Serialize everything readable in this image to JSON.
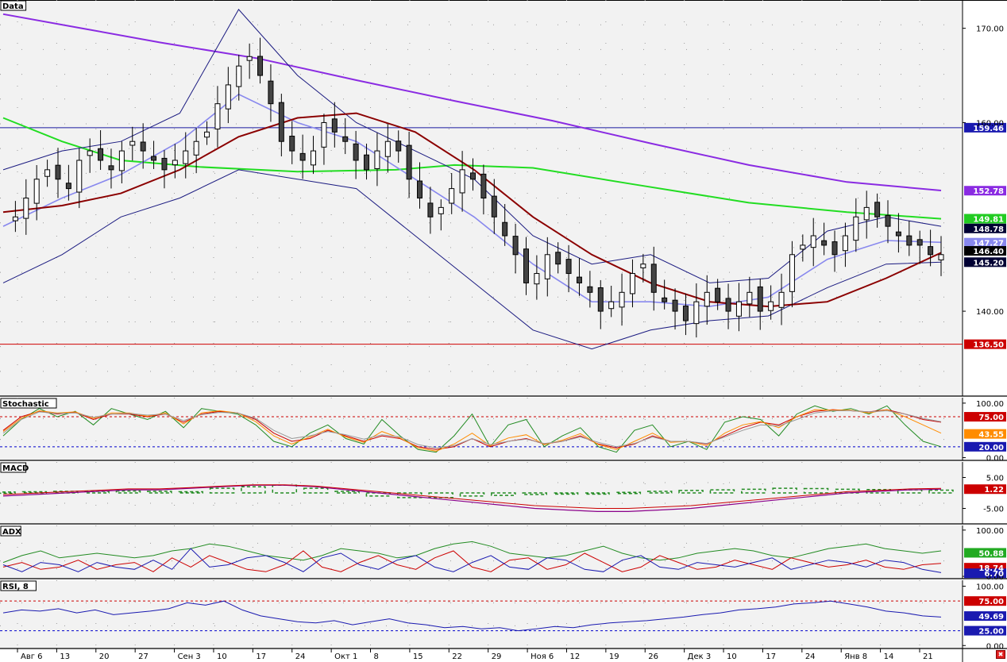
{
  "window": {
    "close_icon": "close-icon"
  },
  "x_axis": {
    "labels": [
      "Авг 6",
      "13",
      "20",
      "27",
      "Сен 3",
      "10",
      "17",
      "24",
      "Окт 1",
      "8",
      "15",
      "22",
      "29",
      "Ноя 6",
      "12",
      "19",
      "26",
      "Дек 3",
      "10",
      "17",
      "24",
      "Янв 8",
      "14",
      "21"
    ]
  },
  "chart_data": [
    {
      "title": "Data",
      "type": "candlestick",
      "ylim": [
        131,
        173
      ],
      "yticks": [
        "170.00",
        "160.00",
        "140.00"
      ],
      "hlines": [
        {
          "value": 159.46,
          "color": "#1a1aa0"
        },
        {
          "value": 136.5,
          "color": "#d00000"
        }
      ],
      "badges": [
        {
          "text": "159.46",
          "value": 159.46,
          "bg": "#1a1ab0",
          "fg": "#ffffff"
        },
        {
          "text": "152.78",
          "value": 152.78,
          "bg": "#8a2be2",
          "fg": "#ffffff"
        },
        {
          "text": "149.81",
          "value": 149.81,
          "bg": "#22cc22",
          "fg": "#ffffff"
        },
        {
          "text": "148.78",
          "value": 148.78,
          "bg": "#000033",
          "fg": "#ffffff"
        },
        {
          "text": "147.27",
          "value": 147.27,
          "bg": "#8888ee",
          "fg": "#ffffff"
        },
        {
          "text": "146.40",
          "value": 146.4,
          "bg": "#000000",
          "fg": "#ffffff"
        },
        {
          "text": "145.20",
          "value": 145.2,
          "bg": "#000033",
          "fg": "#ffffff"
        },
        {
          "text": "136.50",
          "value": 136.5,
          "bg": "#cc0000",
          "fg": "#ffffff"
        }
      ],
      "close_path": [
        149,
        150,
        152,
        154,
        155,
        154,
        153,
        156,
        157,
        156,
        155,
        157,
        158,
        157,
        156,
        155,
        156,
        157,
        158,
        159,
        162,
        164,
        166,
        167,
        165,
        162,
        158,
        157,
        156,
        157,
        160,
        159,
        158,
        156,
        155,
        157,
        158,
        157,
        154,
        152,
        150,
        151,
        153,
        155,
        154,
        152,
        150,
        148,
        146,
        143,
        144,
        146,
        145,
        144,
        143,
        142,
        140,
        141,
        142,
        144,
        145,
        142,
        141,
        140,
        139,
        141,
        142,
        141,
        140,
        141,
        142,
        140,
        141,
        142,
        146,
        147,
        148,
        147,
        146,
        148,
        150,
        151,
        150,
        149,
        148,
        147,
        147,
        146,
        146
      ],
      "ma_purple": [
        [
          0,
          171.5
        ],
        [
          40,
          170
        ],
        [
          80,
          168.5
        ],
        [
          130,
          166.8
        ],
        [
          180,
          164.5
        ],
        [
          230,
          162.3
        ],
        [
          280,
          160.2
        ],
        [
          330,
          157.8
        ],
        [
          380,
          155.5
        ],
        [
          430,
          153.7
        ],
        [
          478,
          152.8
        ]
      ],
      "ma_green": [
        [
          0,
          160.5
        ],
        [
          30,
          158
        ],
        [
          60,
          156
        ],
        [
          100,
          155.3
        ],
        [
          150,
          154.8
        ],
        [
          200,
          155
        ],
        [
          230,
          155.5
        ],
        [
          270,
          155.2
        ],
        [
          320,
          153.5
        ],
        [
          380,
          151.5
        ],
        [
          430,
          150.5
        ],
        [
          478,
          149.8
        ]
      ],
      "ma_red": [
        [
          0,
          150.5
        ],
        [
          30,
          151.2
        ],
        [
          60,
          152.5
        ],
        [
          90,
          155
        ],
        [
          120,
          158.5
        ],
        [
          150,
          160.5
        ],
        [
          180,
          161
        ],
        [
          210,
          159
        ],
        [
          240,
          155
        ],
        [
          270,
          150
        ],
        [
          300,
          146
        ],
        [
          330,
          143
        ],
        [
          360,
          141
        ],
        [
          390,
          140.5
        ],
        [
          420,
          141
        ],
        [
          450,
          143.5
        ],
        [
          478,
          146.2
        ]
      ],
      "bb_mid": [
        [
          0,
          149
        ],
        [
          30,
          152
        ],
        [
          60,
          154.5
        ],
        [
          90,
          158
        ],
        [
          120,
          163
        ],
        [
          150,
          160
        ],
        [
          180,
          158
        ],
        [
          210,
          154
        ],
        [
          240,
          150
        ],
        [
          270,
          145
        ],
        [
          300,
          141
        ],
        [
          330,
          141
        ],
        [
          360,
          140.5
        ],
        [
          390,
          141.5
        ],
        [
          420,
          145.5
        ],
        [
          450,
          147.5
        ],
        [
          478,
          147.3
        ]
      ],
      "bb_up": [
        [
          0,
          155
        ],
        [
          30,
          157
        ],
        [
          60,
          158
        ],
        [
          90,
          161
        ],
        [
          120,
          172
        ],
        [
          150,
          165
        ],
        [
          180,
          160
        ],
        [
          210,
          157
        ],
        [
          240,
          154
        ],
        [
          270,
          148
        ],
        [
          300,
          145
        ],
        [
          330,
          146
        ],
        [
          360,
          143
        ],
        [
          390,
          143.5
        ],
        [
          420,
          148.5
        ],
        [
          450,
          150
        ],
        [
          478,
          149
        ]
      ],
      "bb_low": [
        [
          0,
          143
        ],
        [
          30,
          146
        ],
        [
          60,
          150
        ],
        [
          90,
          152
        ],
        [
          120,
          155
        ],
        [
          150,
          154
        ],
        [
          180,
          153
        ],
        [
          210,
          148
        ],
        [
          240,
          143
        ],
        [
          270,
          138
        ],
        [
          300,
          136
        ],
        [
          330,
          138
        ],
        [
          360,
          139
        ],
        [
          390,
          139.5
        ],
        [
          420,
          142.5
        ],
        [
          450,
          145
        ],
        [
          478,
          145.2
        ]
      ]
    },
    {
      "title": "Stochastic",
      "type": "line",
      "ylim": [
        -5,
        110
      ],
      "yticks": [
        "100.00",
        "0.00"
      ],
      "levels": [
        {
          "value": 75,
          "color": "#cc0000"
        },
        {
          "value": 20,
          "color": "#0000cc"
        }
      ],
      "badges": [
        {
          "text": "75.00",
          "value": 75,
          "bg": "#cc0000",
          "fg": "#ffffff"
        },
        {
          "text": "43.55",
          "value": 43.55,
          "bg": "#ff8c00",
          "fg": "#ffffff"
        },
        {
          "text": "20.00",
          "value": 20,
          "bg": "#1a1ab0",
          "fg": "#ffffff"
        }
      ],
      "series": [
        {
          "color": "#228b22",
          "values": [
            40,
            70,
            90,
            75,
            85,
            60,
            90,
            80,
            70,
            85,
            55,
            90,
            85,
            80,
            60,
            30,
            20,
            45,
            60,
            35,
            25,
            70,
            40,
            15,
            10,
            40,
            80,
            20,
            60,
            70,
            20,
            40,
            55,
            20,
            10,
            50,
            60,
            20,
            30,
            15,
            65,
            75,
            70,
            40,
            80,
            95,
            85,
            90,
            80,
            95,
            60,
            30,
            20
          ]
        },
        {
          "color": "#cc0000",
          "values": [
            50,
            75,
            85,
            80,
            83,
            70,
            80,
            80,
            75,
            80,
            65,
            80,
            85,
            82,
            70,
            45,
            30,
            35,
            50,
            40,
            30,
            40,
            35,
            20,
            15,
            20,
            35,
            20,
            30,
            35,
            25,
            30,
            40,
            25,
            18,
            25,
            40,
            30,
            30,
            25,
            40,
            55,
            65,
            60,
            75,
            85,
            88,
            86,
            84,
            88,
            80,
            70,
            65
          ]
        },
        {
          "color": "#ff8c00",
          "values": [
            48,
            72,
            86,
            82,
            84,
            72,
            82,
            82,
            76,
            82,
            62,
            82,
            86,
            82,
            66,
            40,
            25,
            38,
            52,
            38,
            28,
            48,
            36,
            18,
            12,
            25,
            45,
            22,
            36,
            42,
            24,
            32,
            44,
            24,
            15,
            30,
            45,
            28,
            30,
            22,
            45,
            60,
            66,
            55,
            75,
            88,
            87,
            87,
            82,
            88,
            75,
            60,
            45
          ]
        },
        {
          "color": "#999999",
          "values": [
            45,
            70,
            84,
            81,
            82,
            74,
            80,
            81,
            78,
            80,
            68,
            79,
            83,
            82,
            72,
            50,
            35,
            40,
            48,
            42,
            34,
            42,
            38,
            24,
            18,
            22,
            35,
            24,
            30,
            34,
            26,
            30,
            38,
            28,
            20,
            26,
            38,
            30,
            30,
            26,
            38,
            50,
            60,
            58,
            70,
            82,
            86,
            86,
            84,
            86,
            80,
            72,
            66
          ]
        }
      ]
    },
    {
      "title": "MACD",
      "type": "bar+line",
      "ylim": [
        -10,
        10
      ],
      "yticks": [
        "5.00",
        "-5.00"
      ],
      "badges": [
        {
          "text": "1.22",
          "value": 1.22,
          "bg": "#cc0000",
          "fg": "#ffffff"
        }
      ],
      "line": [
        -1,
        -0.5,
        0,
        0.5,
        1,
        1,
        1.5,
        2,
        2.5,
        2.5,
        2,
        1,
        0,
        -1,
        -2,
        -3,
        -4,
        -5,
        -5.5,
        -6,
        -6,
        -5.5,
        -5,
        -4,
        -3,
        -2,
        -1,
        0,
        0.5,
        1,
        1.2
      ],
      "hist": [
        0.3,
        0.4,
        0.5,
        0.5,
        0.6,
        0.5,
        0.4,
        1.5,
        2,
        2.5,
        1.5,
        0.5,
        -1,
        -1.5,
        -1.5,
        -1,
        -0.8,
        -0.5,
        -0.3,
        -0.2,
        0.2,
        0.5,
        0.8,
        1,
        1.2,
        1.5,
        1.4,
        1.2,
        1.1,
        1.0,
        0.9
      ]
    },
    {
      "title": "ADX",
      "type": "line",
      "ylim": [
        -5,
        110
      ],
      "yticks": [
        "100.00",
        "0.00"
      ],
      "badges": [
        {
          "text": "50.88",
          "value": 50.88,
          "bg": "#22aa22",
          "fg": "#ffffff"
        },
        {
          "text": "18.74",
          "value": 18.74,
          "bg": "#cc0000",
          "fg": "#ffffff"
        },
        {
          "text": "6.70",
          "value": 6.7,
          "bg": "#1a1ab0",
          "fg": "#ffffff"
        }
      ],
      "series": [
        {
          "color": "#228b22",
          "values": [
            30,
            45,
            55,
            40,
            45,
            50,
            45,
            40,
            45,
            55,
            60,
            70,
            65,
            55,
            45,
            40,
            35,
            45,
            60,
            55,
            50,
            40,
            45,
            60,
            70,
            75,
            65,
            50,
            45,
            40,
            45,
            55,
            65,
            50,
            40,
            35,
            40,
            50,
            55,
            60,
            55,
            45,
            40,
            50,
            60,
            65,
            70,
            60,
            55,
            50,
            55
          ]
        },
        {
          "color": "#cc0000",
          "values": [
            20,
            30,
            15,
            20,
            35,
            15,
            25,
            30,
            10,
            40,
            20,
            45,
            30,
            15,
            10,
            25,
            55,
            20,
            10,
            30,
            45,
            25,
            15,
            40,
            55,
            20,
            10,
            35,
            40,
            15,
            25,
            50,
            30,
            10,
            20,
            45,
            30,
            15,
            20,
            35,
            25,
            15,
            40,
            30,
            20,
            25,
            35,
            20,
            15,
            25,
            28
          ]
        },
        {
          "color": "#1a1ab0",
          "values": [
            25,
            10,
            30,
            25,
            10,
            30,
            20,
            15,
            35,
            15,
            60,
            20,
            25,
            40,
            45,
            30,
            10,
            40,
            50,
            25,
            15,
            35,
            45,
            20,
            10,
            30,
            45,
            20,
            15,
            40,
            35,
            15,
            10,
            35,
            45,
            20,
            15,
            30,
            25,
            20,
            30,
            40,
            15,
            25,
            35,
            30,
            20,
            35,
            30,
            15,
            8
          ]
        }
      ]
    },
    {
      "title": "RSI, 8",
      "type": "line",
      "ylim": [
        -5,
        110
      ],
      "yticks": [
        "100.00",
        "0.00"
      ],
      "levels": [
        {
          "value": 75,
          "color": "#cc0000"
        },
        {
          "value": 25,
          "color": "#0000cc"
        }
      ],
      "badges": [
        {
          "text": "75.00",
          "value": 75,
          "bg": "#cc0000",
          "fg": "#ffffff"
        },
        {
          "text": "49.69",
          "value": 49.69,
          "bg": "#1a1ab0",
          "fg": "#ffffff"
        },
        {
          "text": "25.00",
          "value": 25,
          "bg": "#1a1ab0",
          "fg": "#ffffff"
        }
      ],
      "series": [
        {
          "color": "#1a1ab0",
          "values": [
            55,
            60,
            58,
            62,
            55,
            60,
            52,
            55,
            58,
            62,
            72,
            68,
            75,
            60,
            50,
            45,
            40,
            38,
            42,
            35,
            40,
            45,
            38,
            35,
            30,
            32,
            28,
            30,
            25,
            28,
            32,
            30,
            35,
            38,
            40,
            42,
            45,
            48,
            52,
            55,
            60,
            62,
            65,
            70,
            72,
            75,
            70,
            65,
            58,
            55,
            50,
            48
          ]
        }
      ]
    }
  ]
}
